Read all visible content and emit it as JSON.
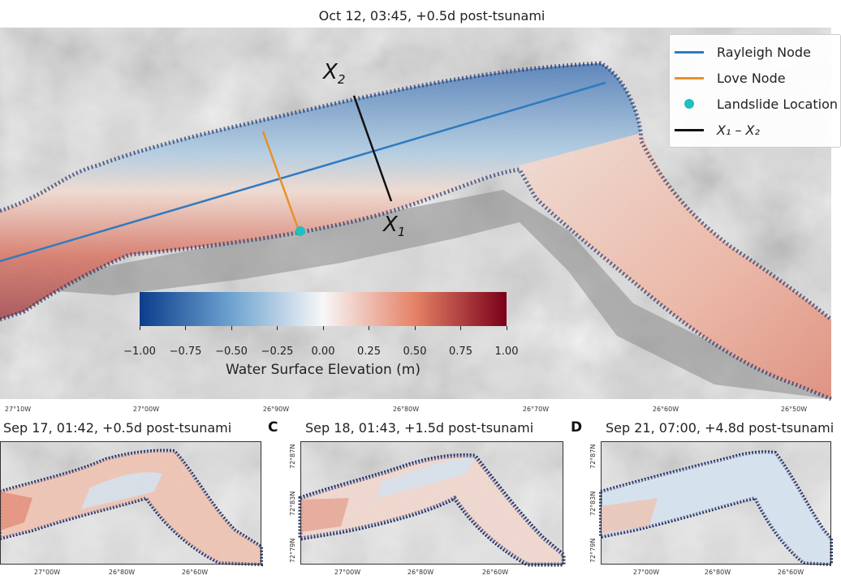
{
  "main": {
    "title": "Oct 12, 03:45, +0.5d post-tsunami",
    "x_ticks": [
      "27°10W",
      "27°00W",
      "26°90W",
      "26°80W",
      "26°70W",
      "26°60W",
      "26°50W"
    ],
    "transect_labels": {
      "x2": "X",
      "x2_sub": "2",
      "x1": "X",
      "x1_sub": "1"
    }
  },
  "legend": {
    "rayleigh": "Rayleigh Node",
    "love": "Love Node",
    "landslide": "Landslide Location",
    "transect": "X₁ – X₂"
  },
  "colors": {
    "rayleigh": "#2f7bbf",
    "love": "#e8902a",
    "landslide": "#1fc0c0",
    "transect": "#111111",
    "neg": "#0b3d8c",
    "zero": "#f7f7f7",
    "pos": "#7a0019"
  },
  "colorbar": {
    "label": "Water Surface Elevation (m)",
    "ticks": [
      "−1.00",
      "−0.75",
      "−0.50",
      "−0.25",
      "0.00",
      "0.25",
      "0.50",
      "0.75",
      "1.00"
    ]
  },
  "panels": [
    {
      "letter": "",
      "title": "Sep 17, 01:42, +0.5d post-tsunami",
      "x_ticks": [
        "27°00W",
        "26°80W",
        "26°60W"
      ],
      "y_ticks": []
    },
    {
      "letter": "C",
      "title": "Sep 18, 01:43, +1.5d post-tsunami",
      "x_ticks": [
        "27°00W",
        "26°80W",
        "26°60W"
      ],
      "y_ticks": [
        "72°87N",
        "72°83N",
        "72°79N"
      ]
    },
    {
      "letter": "D",
      "title": "Sep 21, 07:00, +4.8d post-tsunami",
      "x_ticks": [
        "27°00W",
        "26°80W",
        "26°60W"
      ],
      "y_ticks": [
        "72°87N",
        "72°83N",
        "72°79N"
      ]
    }
  ],
  "chart_data": {
    "type": "heatmap",
    "title": "Oct 12, 03:45, +0.5d post-tsunami",
    "colorbar_label": "Water Surface Elevation (m)",
    "colorbar_range": [
      -1.0,
      1.0
    ],
    "colorbar_ticks": [
      -1.0,
      -0.75,
      -0.5,
      -0.25,
      0.0,
      0.25,
      0.5,
      0.75,
      1.0
    ],
    "x_ticks": [
      "27°10W",
      "27°00W",
      "26°90W",
      "26°80W",
      "26°70W",
      "26°60W",
      "26°50W"
    ],
    "legend": [
      "Rayleigh Node",
      "Love Node",
      "Landslide Location",
      "X₁ – X₂"
    ],
    "subpanels": [
      {
        "title": "Sep 17, 01:42, +0.5d post-tsunami",
        "x_ticks": [
          "27°00W",
          "26°80W",
          "26°60W"
        ]
      },
      {
        "title": "Sep 18, 01:43, +1.5d post-tsunami",
        "x_ticks": [
          "27°00W",
          "26°80W",
          "26°60W"
        ],
        "y_ticks": [
          "72°87N",
          "72°83N",
          "72°79N"
        ]
      },
      {
        "title": "Sep 21, 07:00, +4.8d post-tsunami",
        "x_ticks": [
          "27°00W",
          "26°80W",
          "26°60W"
        ],
        "y_ticks": [
          "72°87N",
          "72°83N",
          "72°79N"
        ]
      }
    ]
  }
}
